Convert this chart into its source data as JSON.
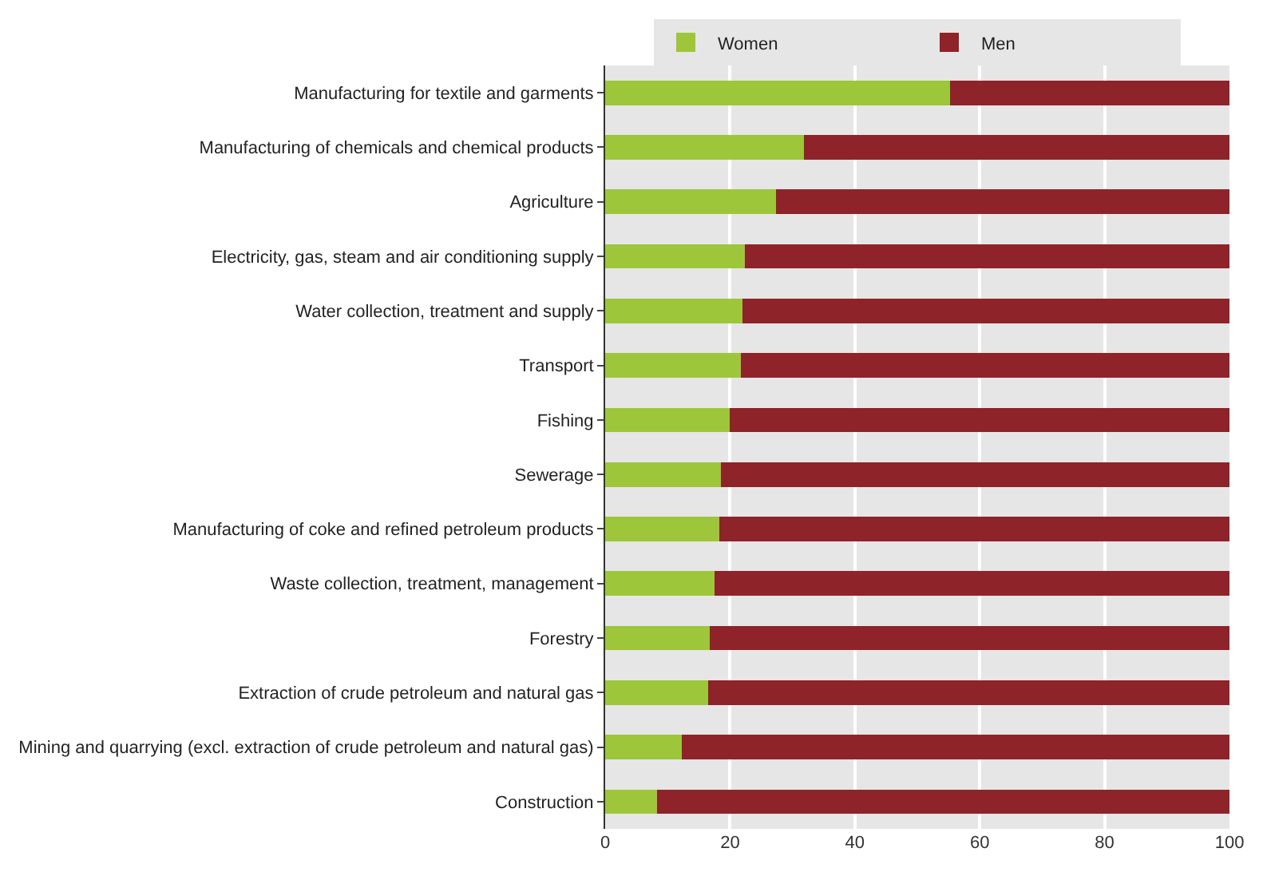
{
  "chart_data": {
    "type": "bar",
    "orientation": "horizontal",
    "stacked": true,
    "categories": [
      "Manufacturing for textile and garments",
      "Manufacturing of chemicals and chemical products",
      "Agriculture",
      "Electricity, gas, steam and air conditioning supply",
      "Water collection, treatment and supply",
      "Transport",
      "Fishing",
      "Sewerage",
      "Manufacturing of coke and refined petroleum products",
      "Waste collection, treatment, management",
      "Forestry",
      "Extraction of crude petroleum and natural gas",
      "Mining and quarrying (excl. extraction of crude petroleum and natural gas)",
      "Construction"
    ],
    "series": [
      {
        "name": "Women",
        "color": "#9dc63b",
        "values": [
          55.2,
          31.8,
          27.4,
          22.4,
          22.0,
          21.7,
          20.0,
          18.5,
          18.3,
          17.5,
          16.8,
          16.5,
          12.3,
          8.3
        ]
      },
      {
        "name": "Men",
        "color": "#8e2329",
        "values": [
          44.8,
          68.2,
          72.6,
          77.6,
          78.0,
          78.3,
          80.0,
          81.5,
          81.7,
          82.5,
          83.2,
          83.5,
          87.7,
          91.7
        ]
      }
    ],
    "xlim": [
      0,
      100
    ],
    "xticks": [
      0,
      20,
      40,
      60,
      80,
      100
    ],
    "grid": "x",
    "legend": "top"
  }
}
